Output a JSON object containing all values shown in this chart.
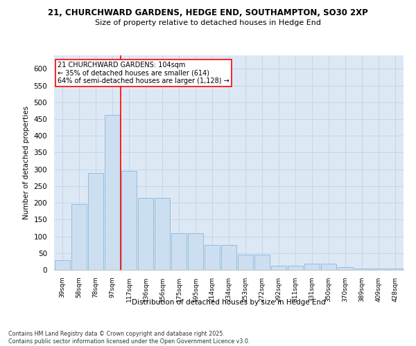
{
  "title_line1": "21, CHURCHWARD GARDENS, HEDGE END, SOUTHAMPTON, SO30 2XP",
  "title_line2": "Size of property relative to detached houses in Hedge End",
  "xlabel": "Distribution of detached houses by size in Hedge End",
  "ylabel": "Number of detached properties",
  "categories": [
    "39sqm",
    "58sqm",
    "78sqm",
    "97sqm",
    "117sqm",
    "136sqm",
    "156sqm",
    "175sqm",
    "195sqm",
    "214sqm",
    "234sqm",
    "253sqm",
    "272sqm",
    "292sqm",
    "311sqm",
    "331sqm",
    "350sqm",
    "370sqm",
    "389sqm",
    "409sqm",
    "428sqm"
  ],
  "values": [
    28,
    197,
    290,
    462,
    295,
    215,
    215,
    110,
    110,
    75,
    75,
    45,
    45,
    12,
    12,
    18,
    18,
    8,
    5,
    5,
    5
  ],
  "bar_color": "#ccdff0",
  "bar_edge_color": "#7aafd4",
  "grid_color": "#c8d4e8",
  "bg_color": "#dde8f5",
  "annotation_box_color": "#ff0000",
  "vline_x": 3.5,
  "annotation_line1": "21 CHURCHWARD GARDENS: 104sqm",
  "annotation_line2": "← 35% of detached houses are smaller (614)",
  "annotation_line3": "64% of semi-detached houses are larger (1,128) →",
  "footnote": "Contains HM Land Registry data © Crown copyright and database right 2025.\nContains public sector information licensed under the Open Government Licence v3.0.",
  "ylim": [
    0,
    640
  ],
  "yticks": [
    0,
    50,
    100,
    150,
    200,
    250,
    300,
    350,
    400,
    450,
    500,
    550,
    600
  ]
}
